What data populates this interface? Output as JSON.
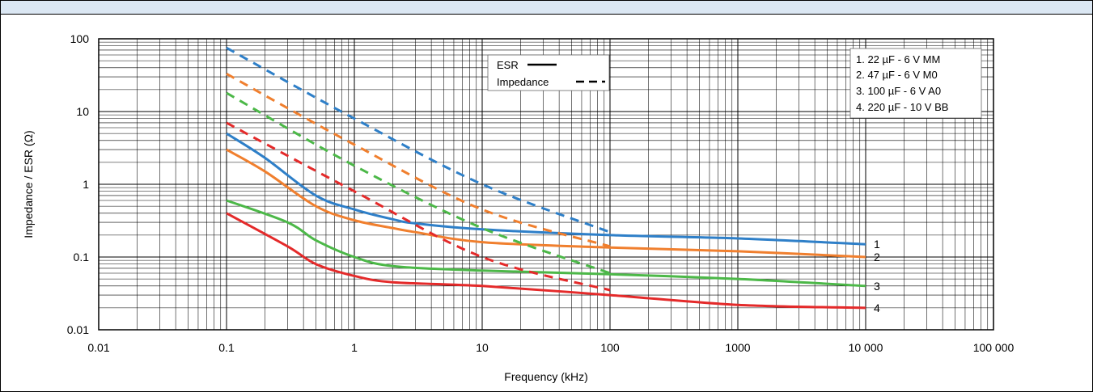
{
  "chart_data": {
    "type": "line",
    "title": "",
    "xlabel": "Frequency (kHz)",
    "ylabel": "Impedance / ESR (Ω)",
    "x_scale": "log",
    "y_scale": "log",
    "xlim": [
      0.01,
      100000
    ],
    "ylim": [
      0.01,
      100
    ],
    "grid": true,
    "x_ticks": [
      {
        "value": 0.01,
        "label": "0.01"
      },
      {
        "value": 0.1,
        "label": "0.1"
      },
      {
        "value": 1,
        "label": "1"
      },
      {
        "value": 10,
        "label": "10"
      },
      {
        "value": 100,
        "label": "100"
      },
      {
        "value": 1000,
        "label": "1000"
      },
      {
        "value": 10000,
        "label": "10 000"
      },
      {
        "value": 100000,
        "label": "100 000"
      }
    ],
    "y_ticks": [
      {
        "value": 0.01,
        "label": "0.01"
      },
      {
        "value": 0.1,
        "label": "0.1"
      },
      {
        "value": 1,
        "label": "1"
      },
      {
        "value": 10,
        "label": "10"
      },
      {
        "value": 100,
        "label": "100"
      }
    ],
    "style_legend": {
      "placement": "top-center",
      "entries": [
        {
          "label": "ESR",
          "style": "solid"
        },
        {
          "label": "Impedance",
          "style": "dashed"
        }
      ]
    },
    "series_legend": {
      "placement": "top-right",
      "entries": [
        "1. 22 µF - 6 V MM",
        "2. 47 µF - 6 V M0",
        "3. 100 µF - 6 V A0",
        "4. 220 µF - 10 V BB"
      ]
    },
    "series": [
      {
        "label": "1",
        "color": "#2e7fc8",
        "esr": [
          [
            0.1,
            5
          ],
          [
            0.2,
            2.3
          ],
          [
            0.5,
            0.7
          ],
          [
            1,
            0.45
          ],
          [
            2,
            0.33
          ],
          [
            3,
            0.29
          ],
          [
            10,
            0.24
          ],
          [
            100,
            0.2
          ],
          [
            1000,
            0.18
          ],
          [
            10000,
            0.15
          ]
        ],
        "impedance": [
          [
            0.1,
            75
          ],
          [
            1,
            8
          ],
          [
            10,
            1
          ],
          [
            100,
            0.22
          ]
        ]
      },
      {
        "label": "2",
        "color": "#f07f2e",
        "esr": [
          [
            0.1,
            3
          ],
          [
            0.2,
            1.5
          ],
          [
            0.5,
            0.5
          ],
          [
            1,
            0.32
          ],
          [
            2,
            0.25
          ],
          [
            3,
            0.22
          ],
          [
            10,
            0.16
          ],
          [
            100,
            0.135
          ],
          [
            1000,
            0.12
          ],
          [
            10000,
            0.1
          ]
        ],
        "impedance": [
          [
            0.1,
            33
          ],
          [
            1,
            3.5
          ],
          [
            10,
            0.45
          ],
          [
            100,
            0.14
          ]
        ]
      },
      {
        "label": "3",
        "color": "#4cb848",
        "esr": [
          [
            0.1,
            0.6
          ],
          [
            0.3,
            0.3
          ],
          [
            0.5,
            0.17
          ],
          [
            1,
            0.1
          ],
          [
            2,
            0.075
          ],
          [
            10,
            0.065
          ],
          [
            100,
            0.058
          ],
          [
            1000,
            0.05
          ],
          [
            10000,
            0.04
          ]
        ],
        "impedance": [
          [
            0.1,
            18
          ],
          [
            1,
            1.8
          ],
          [
            10,
            0.25
          ],
          [
            100,
            0.06
          ]
        ]
      },
      {
        "label": "4",
        "color": "#e42a2a",
        "esr": [
          [
            0.1,
            0.4
          ],
          [
            0.3,
            0.14
          ],
          [
            0.5,
            0.08
          ],
          [
            1,
            0.055
          ],
          [
            2,
            0.045
          ],
          [
            10,
            0.04
          ],
          [
            100,
            0.03
          ],
          [
            1000,
            0.022
          ],
          [
            10000,
            0.02
          ]
        ],
        "impedance": [
          [
            0.1,
            7
          ],
          [
            1,
            0.8
          ],
          [
            10,
            0.1
          ],
          [
            100,
            0.035
          ]
        ]
      }
    ]
  }
}
